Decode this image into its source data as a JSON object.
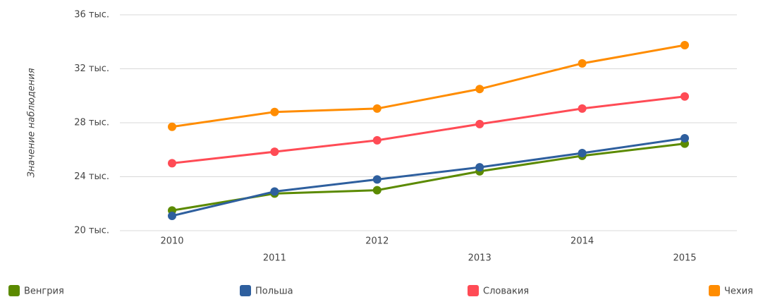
{
  "chart_data": {
    "type": "line",
    "ylabel": "Значение наблюдения",
    "categories": [
      "2010",
      "2011",
      "2012",
      "2013",
      "2014",
      "2015"
    ],
    "series": [
      {
        "name": "Венгрия",
        "color": "#5b8a00",
        "values": [
          21500,
          22750,
          23000,
          24400,
          25550,
          26450
        ]
      },
      {
        "name": "Польша",
        "color": "#2e5f9e",
        "values": [
          21100,
          22900,
          23800,
          24700,
          25750,
          26850
        ]
      },
      {
        "name": "Словакия",
        "color": "#ff4b55",
        "values": [
          25000,
          25850,
          26700,
          27900,
          29050,
          29950
        ]
      },
      {
        "name": "Чехия",
        "color": "#ff8c00",
        "values": [
          27700,
          28800,
          29050,
          30500,
          32400,
          33750
        ]
      }
    ],
    "ylim": [
      20000,
      36000
    ],
    "yticks": [
      {
        "value": 20000,
        "label": "20 тыс."
      },
      {
        "value": 24000,
        "label": "24 тыс."
      },
      {
        "value": 28000,
        "label": "28 тыс."
      },
      {
        "value": 32000,
        "label": "32 тыс."
      },
      {
        "value": 36000,
        "label": "36 тыс."
      }
    ],
    "grid": true
  }
}
